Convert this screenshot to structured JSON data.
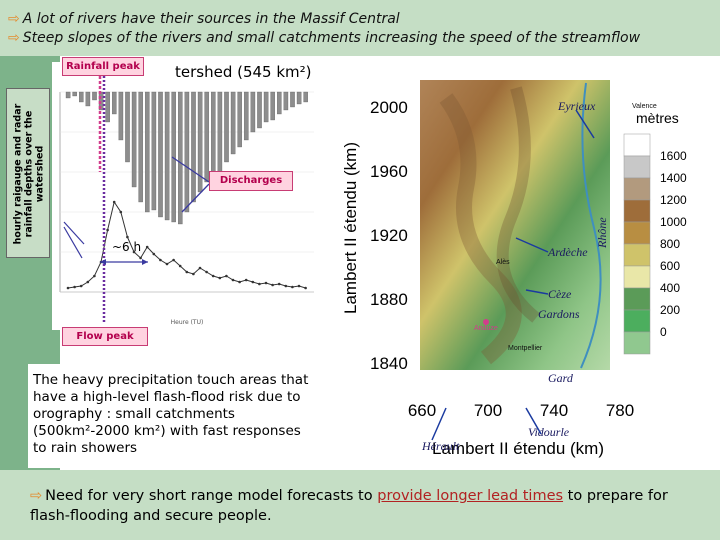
{
  "header": {
    "line1": "A lot of rivers have their sources in the Massif Central",
    "line2": "Steep slopes of the rivers and small catchments increasing the speed of the streamflow"
  },
  "side_label": "hourly raigauge and radar rainfall depths over the watershed",
  "hydrograph": {
    "title_fragment": "tershed (545 km²)",
    "rain_peak_label": "Rainfall peak",
    "discharges_label": "Discharges",
    "flow_peak_label": "Flow peak",
    "lag_label": "~6 h",
    "axis_label": "Heure (TU)"
  },
  "map": {
    "y_axis_label": "Lambert II étendu (km)",
    "x_axis_label": "Lambert II étendu (km)",
    "y_ticks": [
      "2000",
      "1960",
      "1920",
      "1880",
      "1840"
    ],
    "x_ticks": [
      "660",
      "700",
      "740",
      "780"
    ],
    "legend_title": "mètres",
    "legend_values": [
      "1600",
      "1400",
      "1200",
      "1000",
      "800",
      "600",
      "400",
      "200",
      "0"
    ],
    "legend_colors": [
      "#ffffff",
      "#c8c8c8",
      "#b29a7e",
      "#9e6d3a",
      "#b88e42",
      "#cfc36a",
      "#e9e7a8",
      "#5b9b58",
      "#4cae5e",
      "#90c88f"
    ],
    "rivers": [
      "Eyrieux",
      "Rhône",
      "Ardèche",
      "Cèze",
      "Gardons",
      "Gard",
      "Vidourle",
      "Hérault"
    ],
    "towns": [
      "Alès",
      "Anduze",
      "Montpellier",
      "Valence"
    ]
  },
  "textbox": "The heavy precipitation touch areas that have a high-level flash-flood risk due to orography : small catchments (500km²-2000 km²) with fast responses to rain showers",
  "conclusion": {
    "before": "Need for very short range model forecasts to ",
    "highlight": "provide longer lead times",
    "after": " to prepare for flash-flooding and secure people."
  }
}
